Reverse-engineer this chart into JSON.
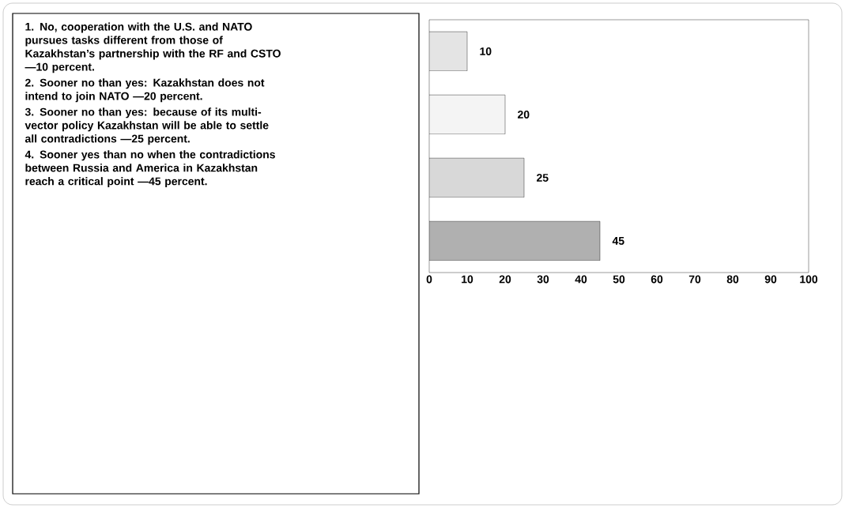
{
  "chart_data": {
    "type": "bar",
    "orientation": "horizontal",
    "categories": [
      null,
      null,
      null,
      null
    ],
    "values": [
      10,
      20,
      25,
      45
    ],
    "colors": [
      "#e4e4e4",
      "#f4f4f4",
      "#d8d8d8",
      "#b0b0b0"
    ],
    "xlim": [
      0,
      100
    ],
    "xticks": [
      0,
      10,
      20,
      30,
      40,
      50,
      60,
      70,
      80,
      90,
      100
    ],
    "data_labels": true,
    "tick_labels": "x",
    "annotations": [
      "1. No, cooperation with the U.S. and NATO pursues tasks different from those of Kazakhstan’s partnership with the RF and CSTO —10 percent.",
      "2. Sooner no than yes: Kazakhstan does not intend to join NATO —20 percent.",
      "3. Sooner no than yes: because of its multi-vector policy Kazakhstan will be able to settle all contradictions —25 percent.",
      "4. Sooner yes than no when the contradictions between Russia and America in Kazakhstan reach a critical point —45 percent."
    ]
  }
}
